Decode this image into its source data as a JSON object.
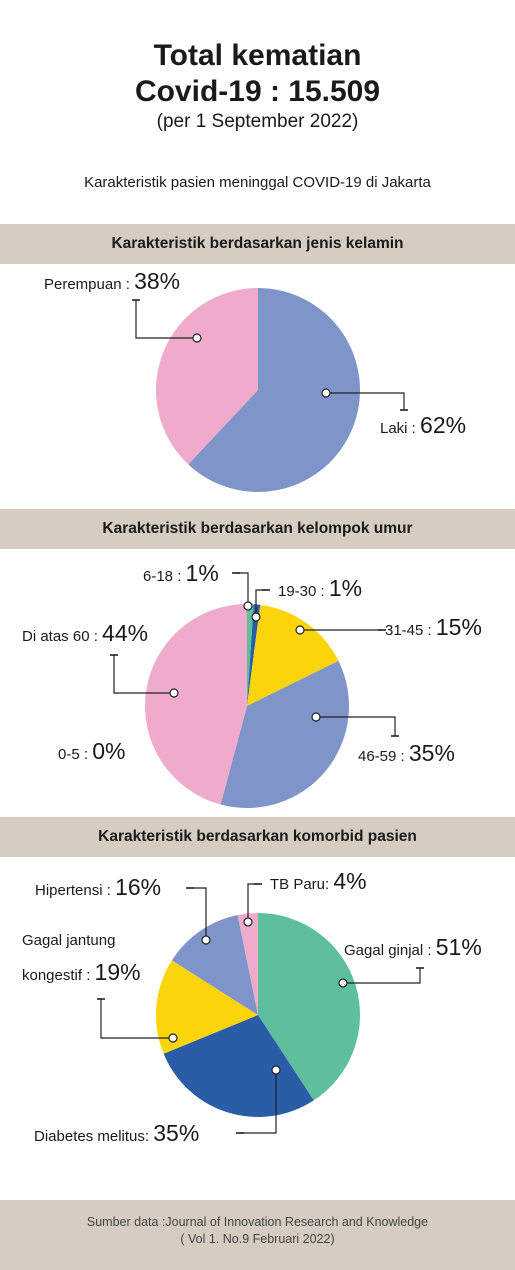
{
  "header": {
    "title_line1": "Total kematian",
    "title_line2": "Covid-19 : 15.509",
    "date": "(per 1 September 2022)",
    "subtitle": "Karakteristik pasien meninggal COVID-19 di Jakarta"
  },
  "chart_data": [
    {
      "type": "pie",
      "title": "Karakteristik berdasarkan jenis kelamin",
      "slices": [
        {
          "label": "Laki :",
          "value": 62,
          "display": "62%",
          "color": "#7f95ca"
        },
        {
          "label": "Perempuan :",
          "value": 38,
          "display": "38%",
          "color": "#eeabcb"
        }
      ]
    },
    {
      "type": "pie",
      "title": "Karakteristik berdasarkan kelompok umur",
      "slices": [
        {
          "label": "0-5 :",
          "value": 0,
          "display": "0%",
          "color": "#ffffff"
        },
        {
          "label": "6-18 :",
          "value": 1,
          "display": "1%",
          "color": "#5dbf9e"
        },
        {
          "label": "19-30 :",
          "value": 1,
          "display": "1%",
          "color": "#2a5ca8"
        },
        {
          "label": "31-45 :",
          "value": 15,
          "display": "15%",
          "color": "#fbd50a"
        },
        {
          "label": "46-59 :",
          "value": 35,
          "display": "35%",
          "color": "#7f95ca"
        },
        {
          "label": "Di atas 60 :",
          "value": 44,
          "display": "44%",
          "color": "#eeabcb"
        }
      ]
    },
    {
      "type": "pie",
      "title": "Karakteristik berdasarkan komorbid pasien",
      "slices": [
        {
          "label": "Gagal ginjal :",
          "value": 51,
          "display": "51%",
          "color": "#5dbf9e"
        },
        {
          "label": "Diabetes melitus:",
          "value": 35,
          "display": "35%",
          "color": "#2a5ca8"
        },
        {
          "label_line1": "Gagal jantung",
          "label": "kongestif :",
          "value": 19,
          "display": "19%",
          "color": "#fbd50a"
        },
        {
          "label": "Hipertensi :",
          "value": 16,
          "display": "16%",
          "color": "#7f95ca"
        },
        {
          "label": "TB Paru:",
          "value": 4,
          "display": "4%",
          "color": "#eeabcb"
        }
      ]
    }
  ],
  "footer": {
    "line1": "Sumber data :Journal of Innovation Research and Knowledge",
    "line2": "( Vol 1. No.9 Februari 2022)"
  }
}
